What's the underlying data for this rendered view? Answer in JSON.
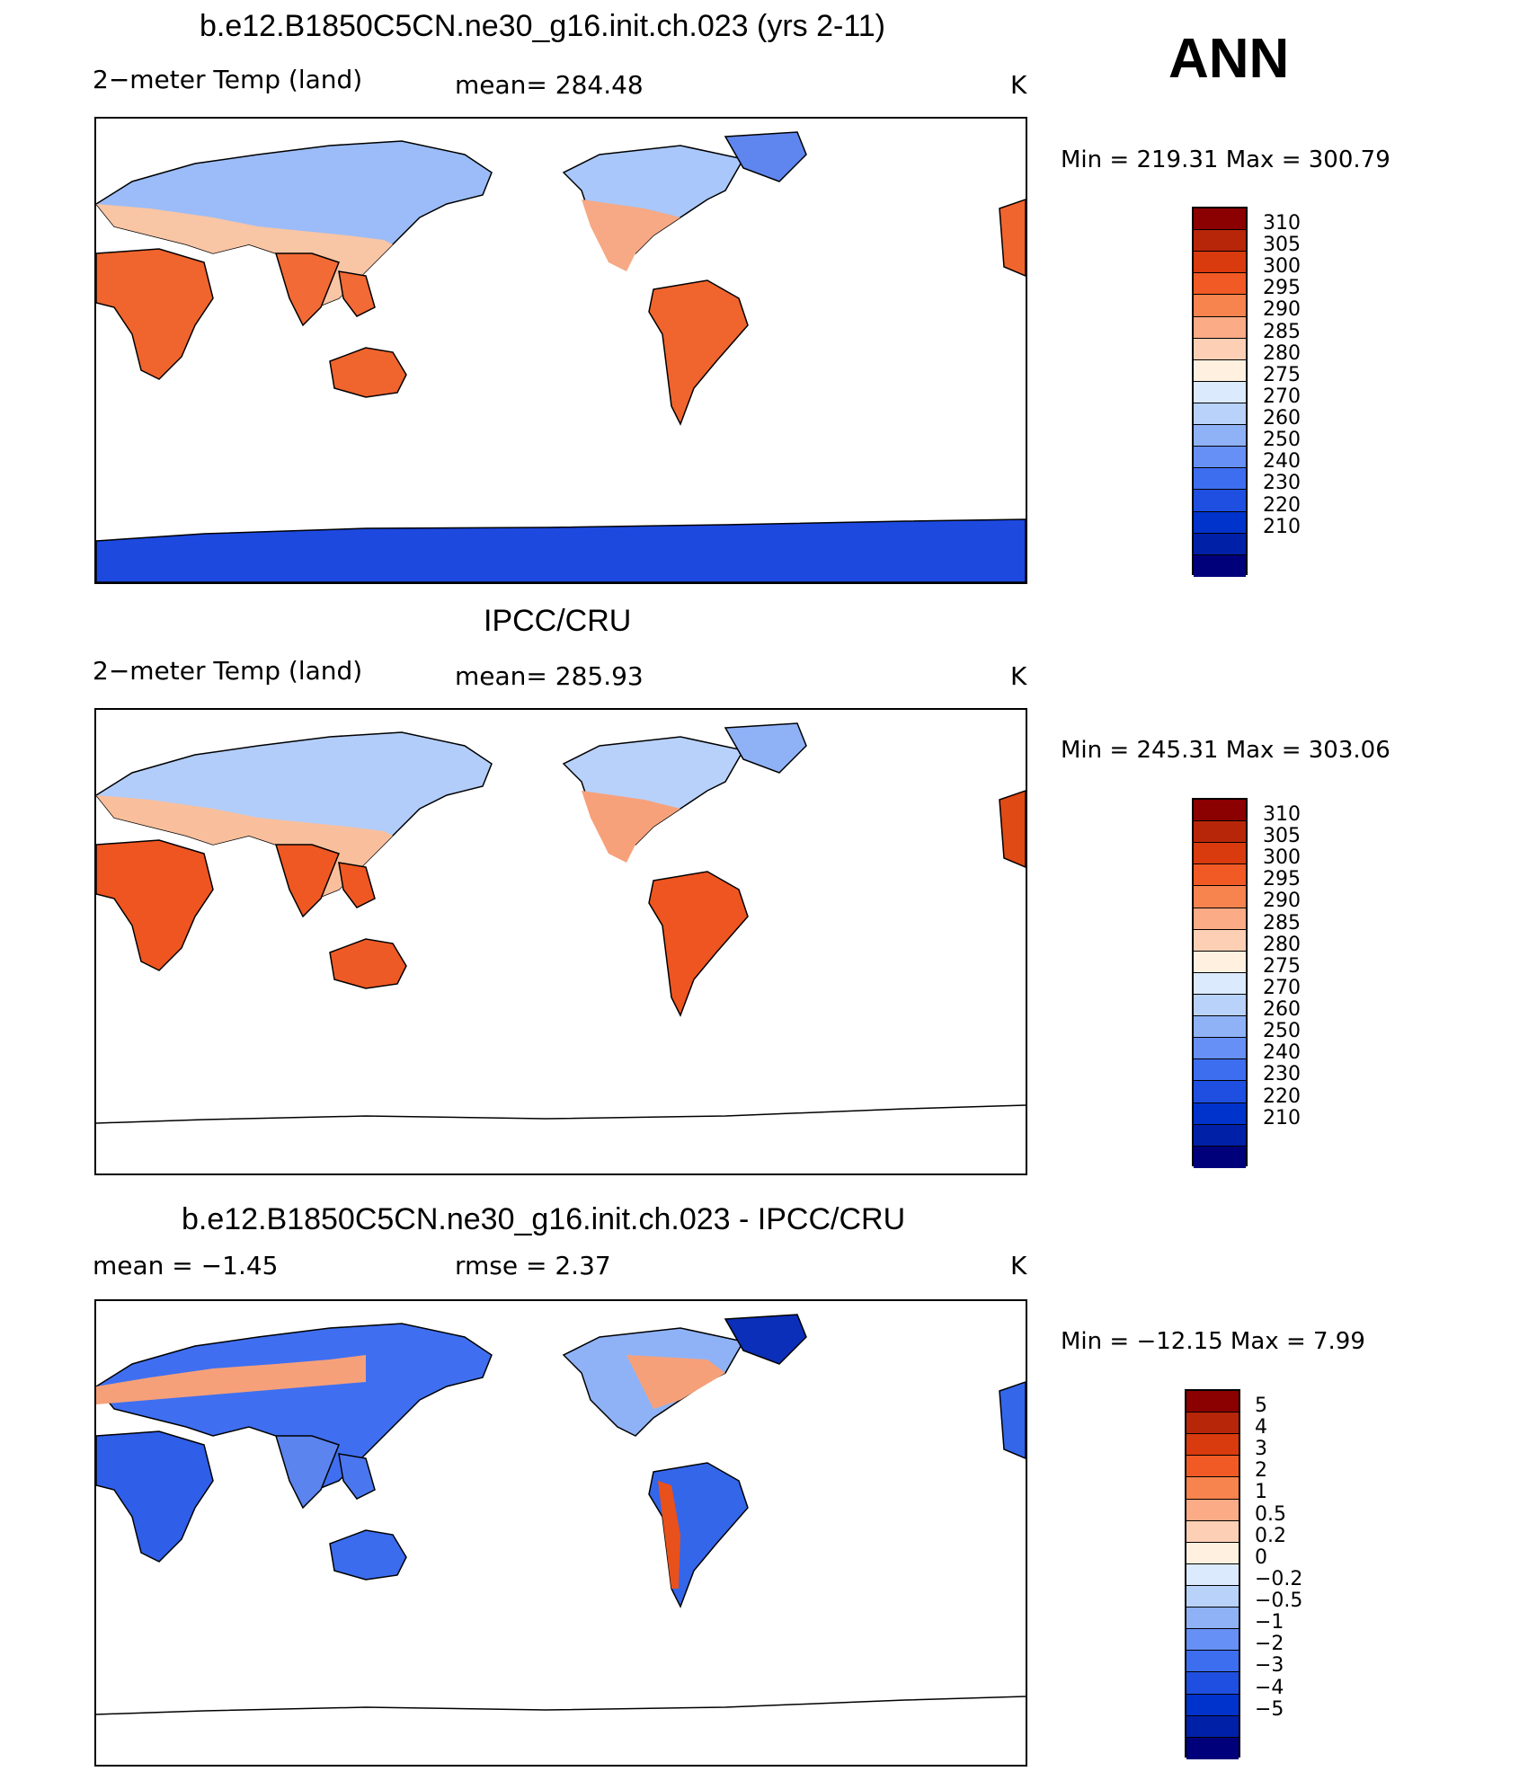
{
  "season": "ANN",
  "colors": {
    "abs_scale": [
      "#00007a",
      "#0020a8",
      "#0033cc",
      "#1f4fe0",
      "#3d6ef0",
      "#6690f5",
      "#8fb2f7",
      "#b9d2fa",
      "#dbeafc",
      "#fff0e0",
      "#fdd0b5",
      "#fbab86",
      "#f7834e",
      "#f15a24",
      "#d93a0e",
      "#b8260a",
      "#8b0000"
    ],
    "diff_scale": [
      "#00007a",
      "#0020a8",
      "#0033cc",
      "#1f4fe0",
      "#3d6ef0",
      "#6690f5",
      "#8fb2f7",
      "#b9d2fa",
      "#dbeafc",
      "#fff0e0",
      "#fdd0b5",
      "#fbab86",
      "#f7834e",
      "#f15a24",
      "#d93a0e",
      "#b8260a",
      "#8b0000"
    ]
  },
  "panels": [
    {
      "title": "b.e12.B1850C5CN.ne30_g16.init.ch.023 (yrs 2-11)",
      "left_label": "2−meter Temp (land)",
      "center_label": "mean=  284.48",
      "right_label": "K",
      "minmax": "Min  =  219.31  Max  =  300.79",
      "colorbar_labels": [
        "310",
        "305",
        "300",
        "295",
        "290",
        "285",
        "280",
        "275",
        "270",
        "260",
        "250",
        "240",
        "230",
        "220",
        "210"
      ],
      "kind": "model"
    },
    {
      "title": "IPCC/CRU",
      "left_label": "2−meter Temp (land)",
      "center_label": "mean=  285.93",
      "right_label": "K",
      "minmax": "Min  =  245.31  Max  =  303.06",
      "colorbar_labels": [
        "310",
        "305",
        "300",
        "295",
        "290",
        "285",
        "280",
        "275",
        "270",
        "260",
        "250",
        "240",
        "230",
        "220",
        "210"
      ],
      "kind": "obs"
    },
    {
      "title": "b.e12.B1850C5CN.ne30_g16.init.ch.023 - IPCC/CRU",
      "left_label": "mean  =    −1.45",
      "center_label": "rmse  =     2.37",
      "right_label": "K",
      "minmax": "Min  =  −12.15  Max  =      7.99",
      "colorbar_labels": [
        "5",
        "4",
        "3",
        "2",
        "1",
        "0.5",
        "0.2",
        "0",
        "−0.2",
        "−0.5",
        "−1",
        "−2",
        "−3",
        "−4",
        "−5"
      ],
      "kind": "diff"
    }
  ]
}
